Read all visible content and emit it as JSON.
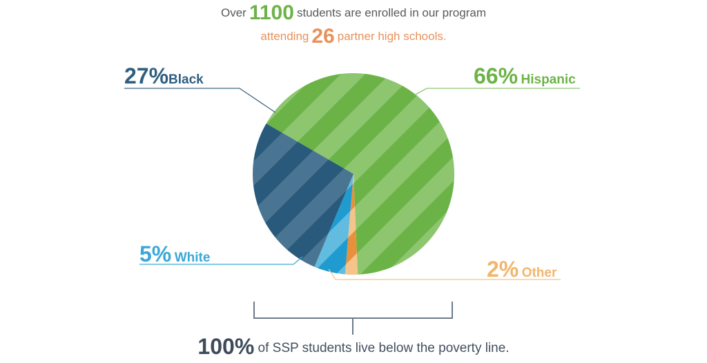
{
  "header": {
    "line1_before": "Over",
    "line1_number": "1100",
    "line1_after": "students are enrolled in our program",
    "line2_before": "attending",
    "line2_number": "26",
    "line2_after": "partner high schools."
  },
  "chart_data": {
    "type": "pie",
    "slices": [
      {
        "name": "Hispanic",
        "value": 66,
        "pct_label": "66%",
        "color": "#6cb347",
        "stripe": "#8dc66e"
      },
      {
        "name": "Other",
        "value": 2,
        "pct_label": "2%",
        "color": "#e8913a",
        "stripe": "#f5c48a"
      },
      {
        "name": "White",
        "value": 5,
        "pct_label": "5%",
        "color": "#1f9bd0",
        "stripe": "#62bce0"
      },
      {
        "name": "Black",
        "value": 27,
        "pct_label": "27%",
        "color": "#2a5a7b",
        "stripe": "#4a7592"
      }
    ],
    "legend": "callout labels around pie"
  },
  "footer": {
    "number": "100%",
    "text": "of SSP students live below the poverty line."
  }
}
